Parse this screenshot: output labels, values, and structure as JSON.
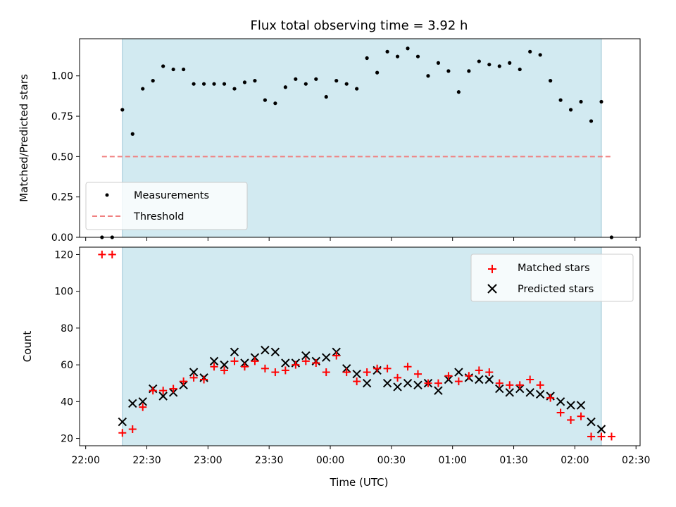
{
  "chart_data": [
    {
      "type": "scatter",
      "title": "Flux total observing time = 3.92 h",
      "xlabel": "",
      "ylabel": "Matched/Predicted stars",
      "ylim": [
        0,
        1.23
      ],
      "yticks": [
        0.0,
        0.25,
        0.5,
        0.75,
        1.0
      ],
      "ytick_labels": [
        "0.00",
        "0.25",
        "0.50",
        "0.75",
        "1.00"
      ],
      "legend_position": "lower-left",
      "shaded_interval": [
        "22:18",
        "02:13"
      ],
      "shade_color": "#add8e6",
      "series": [
        {
          "name": "Measurements",
          "color": "#000000",
          "marker": "dot",
          "x": [
            "22:08",
            "22:13",
            "22:18",
            "22:23",
            "22:28",
            "22:33",
            "22:38",
            "22:43",
            "22:48",
            "22:53",
            "22:58",
            "23:03",
            "23:08",
            "23:13",
            "23:18",
            "23:23",
            "23:28",
            "23:33",
            "23:38",
            "23:43",
            "23:48",
            "23:53",
            "23:58",
            "00:03",
            "00:08",
            "00:13",
            "00:18",
            "00:23",
            "00:28",
            "00:33",
            "00:38",
            "00:43",
            "00:48",
            "00:53",
            "00:58",
            "01:03",
            "01:08",
            "01:13",
            "01:18",
            "01:23",
            "01:28",
            "01:33",
            "01:38",
            "01:43",
            "01:48",
            "01:53",
            "01:58",
            "02:03",
            "02:08",
            "02:13",
            "02:18"
          ],
          "y": [
            0.0,
            0.0,
            0.79,
            0.64,
            0.92,
            0.97,
            1.06,
            1.04,
            1.04,
            0.95,
            0.95,
            0.95,
            0.95,
            0.92,
            0.96,
            0.97,
            0.85,
            0.83,
            0.93,
            0.98,
            0.95,
            0.98,
            0.87,
            0.97,
            0.95,
            0.92,
            1.11,
            1.02,
            1.15,
            1.12,
            1.17,
            1.12,
            1.0,
            1.08,
            1.03,
            0.9,
            1.03,
            1.09,
            1.07,
            1.06,
            1.08,
            1.04,
            1.15,
            1.13,
            0.97,
            0.85,
            0.79,
            0.84,
            0.72,
            0.84,
            0.0
          ]
        },
        {
          "name": "Threshold",
          "color": "#f08080",
          "style": "dashed",
          "x": [
            "22:08",
            "02:18"
          ],
          "y": [
            0.5,
            0.5
          ]
        }
      ]
    },
    {
      "type": "scatter",
      "title": "",
      "xlabel": "Time (UTC)",
      "ylabel": "Count",
      "ylim": [
        16,
        124
      ],
      "yticks": [
        20,
        40,
        60,
        80,
        100,
        120
      ],
      "ytick_labels": [
        "20",
        "40",
        "60",
        "80",
        "100",
        "120"
      ],
      "xlim": [
        "21:57",
        "02:32"
      ],
      "xticks": [
        "22:00",
        "22:30",
        "23:00",
        "23:30",
        "00:00",
        "00:30",
        "01:00",
        "01:30",
        "02:00",
        "02:30"
      ],
      "legend_position": "upper-right",
      "shaded_interval": [
        "22:18",
        "02:13"
      ],
      "series": [
        {
          "name": "Matched stars",
          "color": "#ff0000",
          "marker": "plus",
          "x": [
            "22:08",
            "22:13",
            "22:18",
            "22:23",
            "22:28",
            "22:33",
            "22:38",
            "22:43",
            "22:48",
            "22:53",
            "22:58",
            "23:03",
            "23:08",
            "23:13",
            "23:18",
            "23:23",
            "23:28",
            "23:33",
            "23:38",
            "23:43",
            "23:48",
            "23:53",
            "23:58",
            "00:03",
            "00:08",
            "00:13",
            "00:18",
            "00:23",
            "00:28",
            "00:33",
            "00:38",
            "00:43",
            "00:48",
            "00:53",
            "00:58",
            "01:03",
            "01:08",
            "01:13",
            "01:18",
            "01:23",
            "01:28",
            "01:33",
            "01:38",
            "01:43",
            "01:48",
            "01:53",
            "01:58",
            "02:03",
            "02:08",
            "02:13",
            "02:18"
          ],
          "y": [
            120,
            120,
            23,
            25,
            37,
            46,
            46,
            47,
            51,
            53,
            52,
            59,
            57,
            62,
            59,
            62,
            58,
            56,
            57,
            60,
            62,
            61,
            56,
            65,
            56,
            51,
            56,
            58,
            58,
            53,
            59,
            55,
            50,
            50,
            54,
            51,
            54,
            57,
            56,
            50,
            49,
            49,
            52,
            49,
            42,
            34,
            30,
            32,
            21,
            21,
            21
          ]
        },
        {
          "name": "Predicted stars",
          "color": "#000000",
          "marker": "x",
          "x": [
            "22:18",
            "22:23",
            "22:28",
            "22:33",
            "22:38",
            "22:43",
            "22:48",
            "22:53",
            "22:58",
            "23:03",
            "23:08",
            "23:13",
            "23:18",
            "23:23",
            "23:28",
            "23:33",
            "23:38",
            "23:43",
            "23:48",
            "23:53",
            "23:58",
            "00:03",
            "00:08",
            "00:13",
            "00:18",
            "00:23",
            "00:28",
            "00:33",
            "00:38",
            "00:43",
            "00:48",
            "00:53",
            "00:58",
            "01:03",
            "01:08",
            "01:13",
            "01:18",
            "01:23",
            "01:28",
            "01:33",
            "01:38",
            "01:43",
            "01:48",
            "01:53",
            "01:58",
            "02:03",
            "02:08",
            "02:13"
          ],
          "y": [
            29,
            39,
            40,
            47,
            43,
            45,
            49,
            56,
            53,
            62,
            60,
            67,
            61,
            64,
            68,
            67,
            61,
            61,
            65,
            62,
            64,
            67,
            58,
            55,
            50,
            57,
            50,
            48,
            50,
            49,
            50,
            46,
            52,
            56,
            53,
            52,
            52,
            47,
            45,
            47,
            45,
            44,
            43,
            40,
            38,
            38,
            29,
            25
          ]
        }
      ]
    }
  ]
}
